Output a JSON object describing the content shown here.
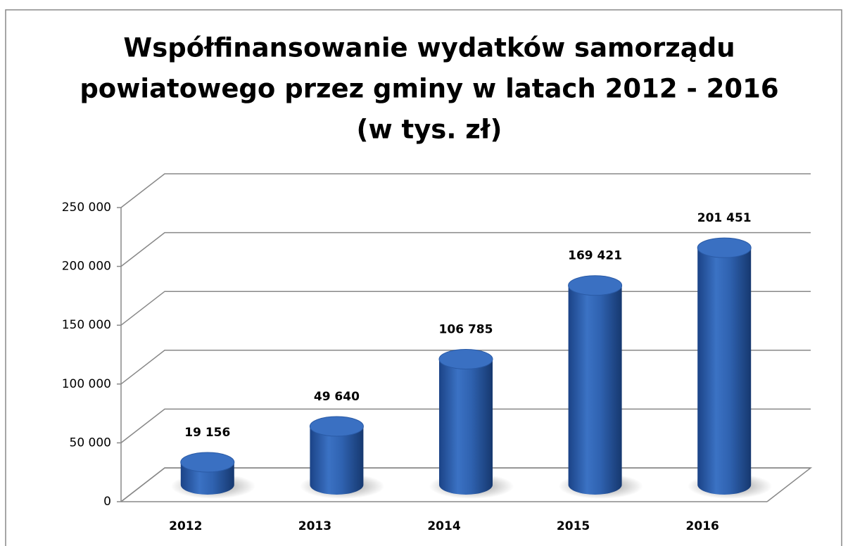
{
  "chart_data": {
    "type": "bar3d",
    "title": [
      "Współfinansowanie wydatków samorządu",
      "powiatowego przez gminy w latach 2012 - 2016",
      "(w tys. zł)"
    ],
    "categories": [
      "2012",
      "2013",
      "2014",
      "2015",
      "2016"
    ],
    "values": [
      19156,
      49640,
      106785,
      169421,
      201451
    ],
    "value_labels": [
      "19 156",
      "49 640",
      "106 785",
      "169 421",
      "201 451"
    ],
    "color": "#2f62b0",
    "ylim": [
      0,
      250000
    ],
    "yticks": [
      0,
      {
        "value": 50000,
        "label": "50 000"
      },
      {
        "value": 100000,
        "label": "100 000"
      },
      {
        "value": 150000,
        "label": "150 000"
      },
      {
        "value": 200000,
        "label": "200 000"
      },
      {
        "value": 250000,
        "label": "250 000"
      }
    ],
    "grid": true
  }
}
